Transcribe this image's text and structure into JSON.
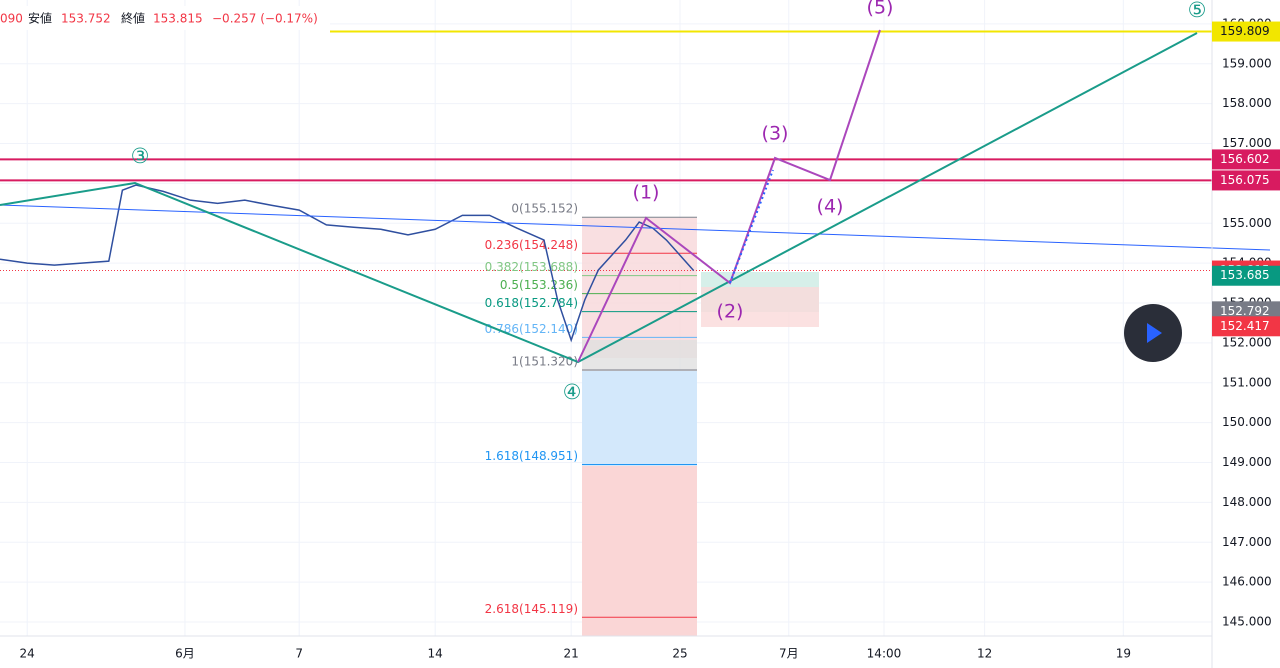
{
  "header": {
    "prefix": "090",
    "low_label": "安値",
    "low": "153.752",
    "close_label": "終値",
    "close": "153.815",
    "change": "−0.257 (−0.17%)"
  },
  "chart_data": {
    "type": "line",
    "ylim": [
      144.65,
      160.6
    ],
    "yticks": [
      {
        "value": 145,
        "label": "145.000"
      },
      {
        "value": 146,
        "label": "146.000"
      },
      {
        "value": 147,
        "label": "147.000"
      },
      {
        "value": 148,
        "label": "148.000"
      },
      {
        "value": 149,
        "label": "149.000"
      },
      {
        "value": 150,
        "label": "150.000"
      },
      {
        "value": 151,
        "label": "151.000"
      },
      {
        "value": 152,
        "label": "152.000"
      },
      {
        "value": 153,
        "label": "153.000"
      },
      {
        "value": 154,
        "label": "154.000"
      },
      {
        "value": 155,
        "label": "155.000"
      },
      {
        "value": 156,
        "label": "156.000"
      },
      {
        "value": 157,
        "label": "157.000"
      },
      {
        "value": 158,
        "label": "158.000"
      },
      {
        "value": 159,
        "label": "159.000"
      },
      {
        "value": 160,
        "label": "160.000"
      }
    ],
    "xlim": [
      0,
      44.56
    ],
    "xticks": [
      {
        "value": 1,
        "label": "24"
      },
      {
        "value": 6.8,
        "label": "6月"
      },
      {
        "value": 11,
        "label": "7"
      },
      {
        "value": 16,
        "label": "14"
      },
      {
        "value": 21,
        "label": "21"
      },
      {
        "value": 25,
        "label": "25"
      },
      {
        "value": 29,
        "label": "7月"
      },
      {
        "value": 32.5,
        "label": "14:00"
      },
      {
        "value": 36.2,
        "label": "12"
      },
      {
        "value": 41.3,
        "label": "19"
      }
    ],
    "series": [
      {
        "color": "#2f4f9f",
        "x": [
          0,
          1,
          2,
          3,
          4,
          4.5,
          5,
          6,
          7,
          8,
          9,
          10,
          11,
          12,
          13,
          14,
          15,
          16,
          17,
          18,
          19,
          20,
          20.5,
          21,
          21.5,
          22,
          23,
          23.5,
          24,
          24.5,
          25,
          25.5
        ],
        "values": [
          154.1,
          154.0,
          153.95,
          154.0,
          154.05,
          155.83,
          155.96,
          155.8,
          155.58,
          155.5,
          155.58,
          155.45,
          155.33,
          154.96,
          154.9,
          154.85,
          154.71,
          154.85,
          155.2,
          155.2,
          154.88,
          154.58,
          153.08,
          152.07,
          153.08,
          153.83,
          154.58,
          155.03,
          154.88,
          154.58,
          154.2,
          153.815
        ]
      }
    ],
    "levels": [
      {
        "value": 159.809,
        "color": "#f2e600",
        "text_color": "#131722"
      },
      {
        "value": 156.602,
        "color": "#d81b60",
        "text_color": "#ffffff"
      },
      {
        "value": 156.075,
        "color": "#d81b60",
        "text_color": "#ffffff"
      },
      {
        "value": 153.815,
        "color": "#f23645",
        "text_color": "#ffffff"
      },
      {
        "value": 153.685,
        "color": "#089981",
        "text_color": "#ffffff"
      },
      {
        "value": 152.792,
        "color": "#787b86",
        "text_color": "#ffffff"
      },
      {
        "value": 152.417,
        "color": "#f23645",
        "text_color": "#ffffff"
      }
    ],
    "fib_levels": [
      {
        "value": 155.152,
        "label": "0(155.152)",
        "color": "#787b86"
      },
      {
        "value": 154.248,
        "label": "0.236(154.248)",
        "color": "#f23645"
      },
      {
        "value": 153.688,
        "label": "0.382(153.688)",
        "color": "#81c784"
      },
      {
        "value": 153.236,
        "label": "0.5(153.236)",
        "color": "#4caf50"
      },
      {
        "value": 152.784,
        "label": "0.618(152.784)",
        "color": "#089981"
      },
      {
        "value": 152.14,
        "label": "0.786(152.140)",
        "color": "#64b5f6"
      },
      {
        "value": 151.32,
        "label": "1(151.320)",
        "color": "#787b86"
      },
      {
        "value": 148.951,
        "label": "1.618(148.951)",
        "color": "#2196f3"
      },
      {
        "value": 145.119,
        "label": "2.618(145.119)",
        "color": "#f23645"
      }
    ]
  },
  "waves": {
    "purple": [
      "(1)",
      "(2)",
      "(3)",
      "(4)",
      "(5)"
    ],
    "teal": [
      "③",
      "④",
      "⑤"
    ]
  }
}
